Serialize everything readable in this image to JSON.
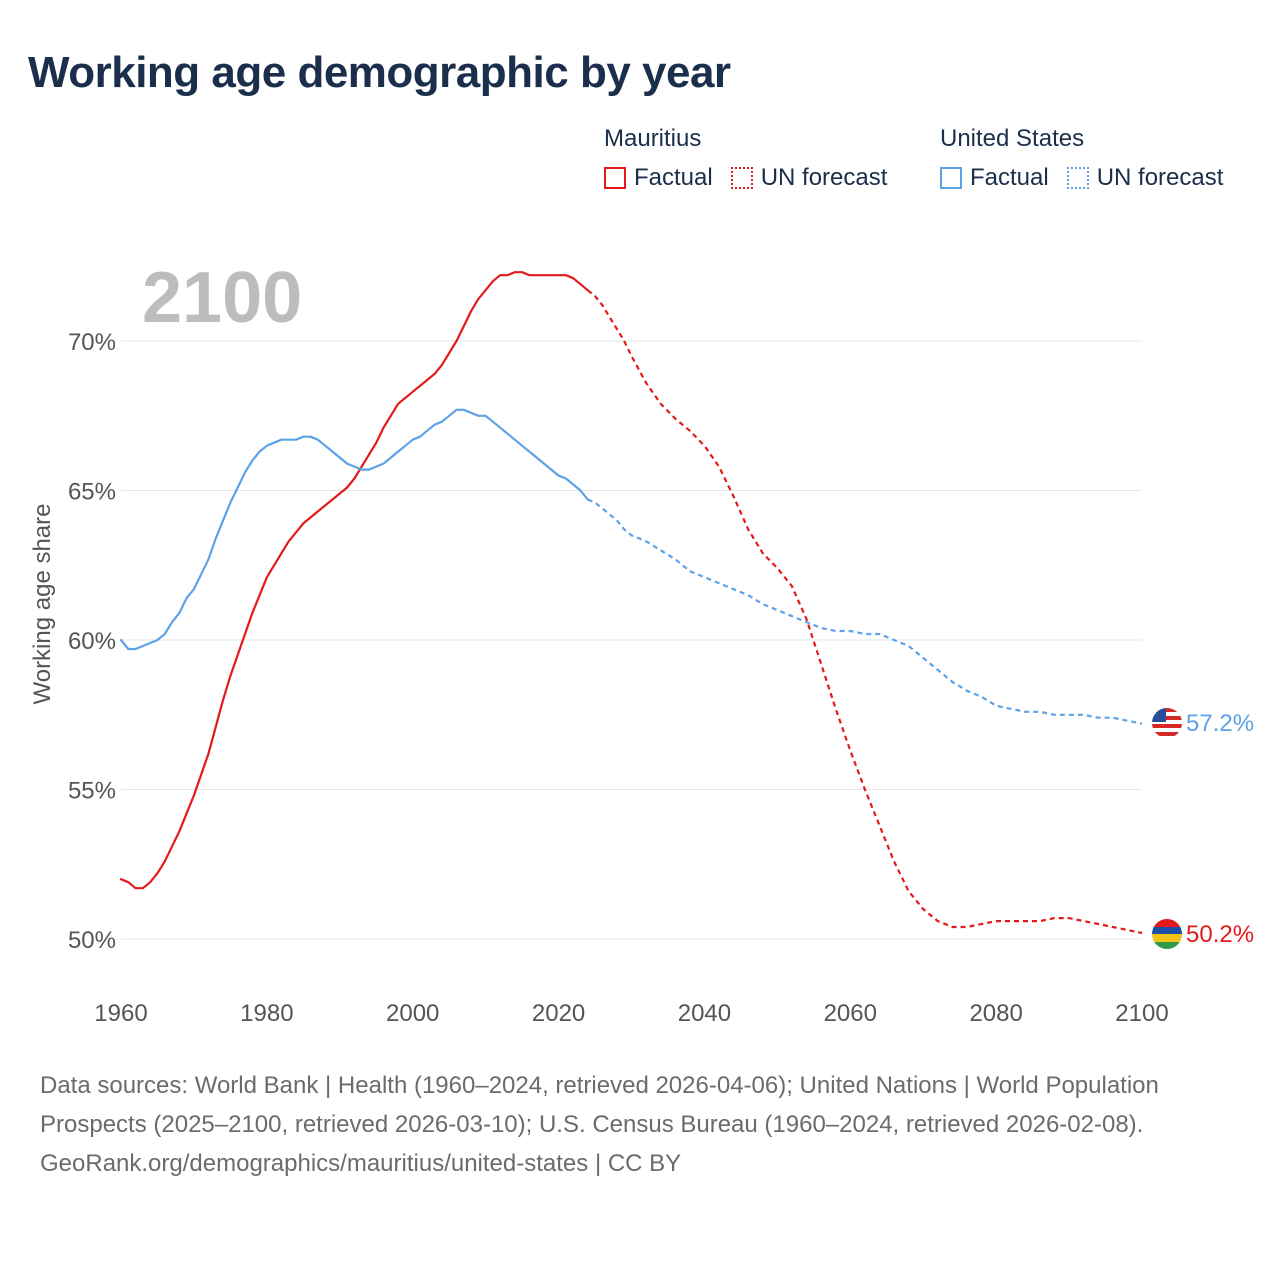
{
  "title": "Working age demographic by year",
  "year_label": "2100",
  "legend": [
    {
      "country": "Mauritius",
      "color": "#e31a1c",
      "items": [
        {
          "label": "Factual",
          "style": "solid"
        },
        {
          "label": "UN forecast",
          "style": "dotted"
        }
      ]
    },
    {
      "country": "United States",
      "color": "#5ba3e6",
      "items": [
        {
          "label": "Factual",
          "style": "solid"
        },
        {
          "label": "UN forecast",
          "style": "dotted"
        }
      ]
    }
  ],
  "footer": {
    "sources": "Data sources: World Bank | Health (1960–2024, retrieved 2026-04-06); United Nations | World Population Prospects (2025–2100, retrieved 2026-03-10); U.S. Census Bureau (1960–2024, retrieved 2026-02-08).",
    "link": "GeoRank.org/demographics/mauritius/united-states | CC BY"
  },
  "chart_data": {
    "type": "line",
    "title": "Working age demographic by year",
    "xlabel": "",
    "ylabel": "Working age share",
    "xlim": [
      1960,
      2100
    ],
    "ylim": [
      49.5,
      73
    ],
    "x_ticks": [
      1960,
      1980,
      2000,
      2020,
      2040,
      2060,
      2080,
      2100
    ],
    "x_tick_labels": [
      "1960",
      "1980",
      "2000",
      "2020",
      "2040",
      "2060",
      "2080",
      "2100"
    ],
    "y_ticks": [
      50,
      55,
      60,
      65,
      70
    ],
    "y_tick_labels": [
      "50%",
      "55%",
      "60%",
      "65%",
      "70%"
    ],
    "forecast_start": 2024,
    "series": [
      {
        "name": "Mauritius",
        "color": "#e31a1c",
        "end_label": "50.2%",
        "x": [
          1960,
          1961,
          1962,
          1963,
          1964,
          1965,
          1966,
          1967,
          1968,
          1969,
          1970,
          1971,
          1972,
          1973,
          1974,
          1975,
          1976,
          1977,
          1978,
          1979,
          1980,
          1981,
          1982,
          1983,
          1984,
          1985,
          1986,
          1987,
          1988,
          1989,
          1990,
          1991,
          1992,
          1993,
          1994,
          1995,
          1996,
          1997,
          1998,
          1999,
          2000,
          2001,
          2002,
          2003,
          2004,
          2005,
          2006,
          2007,
          2008,
          2009,
          2010,
          2011,
          2012,
          2013,
          2014,
          2015,
          2016,
          2017,
          2018,
          2019,
          2020,
          2021,
          2022,
          2023,
          2024,
          2025,
          2026,
          2027,
          2028,
          2029,
          2030,
          2032,
          2034,
          2036,
          2038,
          2040,
          2042,
          2044,
          2046,
          2048,
          2050,
          2052,
          2054,
          2056,
          2058,
          2060,
          2062,
          2064,
          2066,
          2068,
          2070,
          2072,
          2074,
          2076,
          2078,
          2080,
          2082,
          2084,
          2086,
          2088,
          2090,
          2092,
          2094,
          2096,
          2098,
          2100
        ],
        "y": [
          52.0,
          51.9,
          51.7,
          51.7,
          51.9,
          52.2,
          52.6,
          53.1,
          53.6,
          54.2,
          54.8,
          55.5,
          56.2,
          57.1,
          58.0,
          58.8,
          59.5,
          60.2,
          60.9,
          61.5,
          62.1,
          62.5,
          62.9,
          63.3,
          63.6,
          63.9,
          64.1,
          64.3,
          64.5,
          64.7,
          64.9,
          65.1,
          65.4,
          65.8,
          66.2,
          66.6,
          67.1,
          67.5,
          67.9,
          68.1,
          68.3,
          68.5,
          68.7,
          68.9,
          69.2,
          69.6,
          70.0,
          70.5,
          71.0,
          71.4,
          71.7,
          72.0,
          72.2,
          72.2,
          72.3,
          72.3,
          72.2,
          72.2,
          72.2,
          72.2,
          72.2,
          72.2,
          72.1,
          71.9,
          71.7,
          71.5,
          71.2,
          70.8,
          70.4,
          70.0,
          69.5,
          68.6,
          67.9,
          67.4,
          67.0,
          66.5,
          65.8,
          64.8,
          63.7,
          62.9,
          62.4,
          61.8,
          60.7,
          59.2,
          57.7,
          56.3,
          55.0,
          53.8,
          52.6,
          51.6,
          51.0,
          50.6,
          50.4,
          50.4,
          50.5,
          50.6,
          50.6,
          50.6,
          50.6,
          50.7,
          50.7,
          50.6,
          50.5,
          50.4,
          50.3,
          50.2
        ]
      },
      {
        "name": "United States",
        "color": "#5ba3e6",
        "end_label": "57.2%",
        "x": [
          1960,
          1961,
          1962,
          1963,
          1964,
          1965,
          1966,
          1967,
          1968,
          1969,
          1970,
          1971,
          1972,
          1973,
          1974,
          1975,
          1976,
          1977,
          1978,
          1979,
          1980,
          1981,
          1982,
          1983,
          1984,
          1985,
          1986,
          1987,
          1988,
          1989,
          1990,
          1991,
          1992,
          1993,
          1994,
          1995,
          1996,
          1997,
          1998,
          1999,
          2000,
          2001,
          2002,
          2003,
          2004,
          2005,
          2006,
          2007,
          2008,
          2009,
          2010,
          2011,
          2012,
          2013,
          2014,
          2015,
          2016,
          2017,
          2018,
          2019,
          2020,
          2021,
          2022,
          2023,
          2024,
          2025,
          2026,
          2027,
          2028,
          2029,
          2030,
          2032,
          2034,
          2036,
          2038,
          2040,
          2042,
          2044,
          2046,
          2048,
          2050,
          2052,
          2054,
          2056,
          2058,
          2060,
          2062,
          2064,
          2066,
          2068,
          2070,
          2072,
          2074,
          2076,
          2078,
          2080,
          2082,
          2084,
          2086,
          2088,
          2090,
          2092,
          2094,
          2096,
          2098,
          2100
        ],
        "y": [
          60.0,
          59.7,
          59.7,
          59.8,
          59.9,
          60.0,
          60.2,
          60.6,
          60.9,
          61.4,
          61.7,
          62.2,
          62.7,
          63.4,
          64.0,
          64.6,
          65.1,
          65.6,
          66.0,
          66.3,
          66.5,
          66.6,
          66.7,
          66.7,
          66.7,
          66.8,
          66.8,
          66.7,
          66.5,
          66.3,
          66.1,
          65.9,
          65.8,
          65.7,
          65.7,
          65.8,
          65.9,
          66.1,
          66.3,
          66.5,
          66.7,
          66.8,
          67.0,
          67.2,
          67.3,
          67.5,
          67.7,
          67.7,
          67.6,
          67.5,
          67.5,
          67.3,
          67.1,
          66.9,
          66.7,
          66.5,
          66.3,
          66.1,
          65.9,
          65.7,
          65.5,
          65.4,
          65.2,
          65.0,
          64.7,
          64.6,
          64.4,
          64.2,
          64.0,
          63.7,
          63.5,
          63.3,
          63.0,
          62.7,
          62.3,
          62.1,
          61.9,
          61.7,
          61.5,
          61.2,
          61.0,
          60.8,
          60.6,
          60.4,
          60.3,
          60.3,
          60.2,
          60.2,
          60.0,
          59.8,
          59.4,
          59.0,
          58.6,
          58.3,
          58.1,
          57.8,
          57.7,
          57.6,
          57.6,
          57.5,
          57.5,
          57.5,
          57.4,
          57.4,
          57.3,
          57.2
        ]
      }
    ]
  }
}
